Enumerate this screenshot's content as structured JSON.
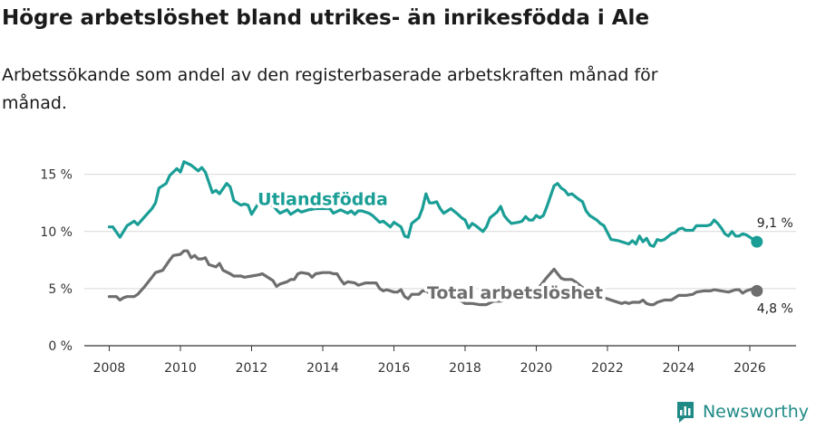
{
  "title": "Högre arbetslöshet bland utrikes- än inrikesfödda i Ale",
  "subtitle": "Arbetssökande som andel av den registerbaserade arbetskraften månad för månad.",
  "brand": {
    "name": "Newsworthy",
    "icon": "newsworthy-logo-icon",
    "color": "#1f8a86"
  },
  "chart_data": {
    "type": "line",
    "title": "",
    "xlabel": "",
    "ylabel": "",
    "xlim": [
      2007.3,
      2027.3
    ],
    "ylim": [
      0,
      16
    ],
    "yticks": [
      0,
      5,
      10,
      15
    ],
    "ytick_labels": [
      "0 %",
      "5 %",
      "10 %",
      "15 %"
    ],
    "xticks": [
      2008,
      2010,
      2012,
      2014,
      2016,
      2018,
      2020,
      2022,
      2024,
      2026
    ],
    "xtick_labels": [
      "2008",
      "2010",
      "2012",
      "2014",
      "2016",
      "2018",
      "2020",
      "2022",
      "2024",
      "2026"
    ],
    "grid": true,
    "series": [
      {
        "name": "Utlandsfödda",
        "color": "#1a9e96",
        "end_label": "9,1 %",
        "points": [
          [
            2008.0,
            10.4
          ],
          [
            2008.1,
            10.4
          ],
          [
            2008.3,
            9.5
          ],
          [
            2008.4,
            10.0
          ],
          [
            2008.5,
            10.5
          ],
          [
            2008.7,
            10.9
          ],
          [
            2008.8,
            10.6
          ],
          [
            2009.0,
            11.3
          ],
          [
            2009.2,
            12.0
          ],
          [
            2009.3,
            12.5
          ],
          [
            2009.4,
            13.8
          ],
          [
            2009.6,
            14.2
          ],
          [
            2009.7,
            14.9
          ],
          [
            2009.8,
            15.2
          ],
          [
            2009.9,
            15.5
          ],
          [
            2010.0,
            15.2
          ],
          [
            2010.1,
            16.1
          ],
          [
            2010.3,
            15.8
          ],
          [
            2010.5,
            15.3
          ],
          [
            2010.6,
            15.6
          ],
          [
            2010.7,
            15.2
          ],
          [
            2010.8,
            14.3
          ],
          [
            2010.9,
            13.4
          ],
          [
            2011.0,
            13.6
          ],
          [
            2011.1,
            13.3
          ],
          [
            2011.3,
            14.2
          ],
          [
            2011.4,
            13.9
          ],
          [
            2011.5,
            12.7
          ],
          [
            2011.7,
            12.3
          ],
          [
            2011.8,
            12.4
          ],
          [
            2011.9,
            12.3
          ],
          [
            2012.0,
            11.5
          ],
          [
            2012.2,
            12.5
          ],
          [
            2012.3,
            12.8
          ],
          [
            2012.4,
            12.6
          ],
          [
            2012.5,
            12.3
          ],
          [
            2012.6,
            12.3
          ],
          [
            2012.7,
            11.9
          ],
          [
            2012.8,
            11.6
          ],
          [
            2013.0,
            11.9
          ],
          [
            2013.1,
            11.5
          ],
          [
            2013.2,
            11.7
          ],
          [
            2013.3,
            11.9
          ],
          [
            2013.4,
            11.7
          ],
          [
            2013.6,
            11.9
          ],
          [
            2013.8,
            12.0
          ],
          [
            2014.0,
            12.0
          ],
          [
            2014.2,
            12.0
          ],
          [
            2014.3,
            11.6
          ],
          [
            2014.5,
            11.9
          ],
          [
            2014.7,
            11.6
          ],
          [
            2014.8,
            11.8
          ],
          [
            2014.9,
            11.5
          ],
          [
            2015.0,
            11.8
          ],
          [
            2015.1,
            11.8
          ],
          [
            2015.3,
            11.6
          ],
          [
            2015.4,
            11.4
          ],
          [
            2015.6,
            10.8
          ],
          [
            2015.7,
            10.9
          ],
          [
            2015.9,
            10.4
          ],
          [
            2016.0,
            10.8
          ],
          [
            2016.2,
            10.4
          ],
          [
            2016.3,
            9.6
          ],
          [
            2016.4,
            9.5
          ],
          [
            2016.5,
            10.7
          ],
          [
            2016.7,
            11.2
          ],
          [
            2016.8,
            12.0
          ],
          [
            2016.9,
            13.3
          ],
          [
            2017.0,
            12.5
          ],
          [
            2017.1,
            12.5
          ],
          [
            2017.2,
            12.6
          ],
          [
            2017.3,
            12.0
          ],
          [
            2017.4,
            11.6
          ],
          [
            2017.6,
            12.0
          ],
          [
            2017.8,
            11.5
          ],
          [
            2017.9,
            11.2
          ],
          [
            2018.0,
            11.0
          ],
          [
            2018.1,
            10.3
          ],
          [
            2018.2,
            10.7
          ],
          [
            2018.3,
            10.5
          ],
          [
            2018.5,
            10.0
          ],
          [
            2018.6,
            10.4
          ],
          [
            2018.7,
            11.2
          ],
          [
            2018.9,
            11.7
          ],
          [
            2019.0,
            12.2
          ],
          [
            2019.1,
            11.4
          ],
          [
            2019.2,
            11.0
          ],
          [
            2019.3,
            10.7
          ],
          [
            2019.5,
            10.8
          ],
          [
            2019.6,
            10.9
          ],
          [
            2019.7,
            11.3
          ],
          [
            2019.8,
            11.0
          ],
          [
            2019.9,
            11.0
          ],
          [
            2020.0,
            11.4
          ],
          [
            2020.1,
            11.2
          ],
          [
            2020.2,
            11.4
          ],
          [
            2020.3,
            12.2
          ],
          [
            2020.4,
            13.1
          ],
          [
            2020.5,
            14.0
          ],
          [
            2020.6,
            14.2
          ],
          [
            2020.7,
            13.8
          ],
          [
            2020.8,
            13.6
          ],
          [
            2020.9,
            13.2
          ],
          [
            2021.0,
            13.3
          ],
          [
            2021.2,
            12.8
          ],
          [
            2021.3,
            12.6
          ],
          [
            2021.4,
            11.8
          ],
          [
            2021.5,
            11.4
          ],
          [
            2021.7,
            11.0
          ],
          [
            2021.8,
            10.7
          ],
          [
            2021.9,
            10.5
          ],
          [
            2022.0,
            9.9
          ],
          [
            2022.1,
            9.3
          ],
          [
            2022.3,
            9.2
          ],
          [
            2022.4,
            9.1
          ],
          [
            2022.5,
            9.0
          ],
          [
            2022.6,
            8.9
          ],
          [
            2022.7,
            9.2
          ],
          [
            2022.8,
            8.9
          ],
          [
            2022.9,
            9.6
          ],
          [
            2023.0,
            9.1
          ],
          [
            2023.1,
            9.4
          ],
          [
            2023.2,
            8.8
          ],
          [
            2023.3,
            8.7
          ],
          [
            2023.4,
            9.3
          ],
          [
            2023.5,
            9.2
          ],
          [
            2023.6,
            9.3
          ],
          [
            2023.8,
            9.8
          ],
          [
            2023.9,
            9.9
          ],
          [
            2024.0,
            10.2
          ],
          [
            2024.1,
            10.3
          ],
          [
            2024.2,
            10.1
          ],
          [
            2024.4,
            10.1
          ],
          [
            2024.5,
            10.5
          ],
          [
            2024.6,
            10.5
          ],
          [
            2024.8,
            10.5
          ],
          [
            2024.9,
            10.6
          ],
          [
            2025.0,
            11.0
          ],
          [
            2025.1,
            10.7
          ],
          [
            2025.2,
            10.3
          ],
          [
            2025.3,
            9.8
          ],
          [
            2025.4,
            9.6
          ],
          [
            2025.5,
            10.0
          ],
          [
            2025.6,
            9.6
          ],
          [
            2025.7,
            9.6
          ],
          [
            2025.8,
            9.8
          ],
          [
            2025.9,
            9.7
          ],
          [
            2026.0,
            9.5
          ],
          [
            2026.1,
            9.3
          ],
          [
            2026.2,
            9.1
          ]
        ]
      },
      {
        "name": "Total arbetslöshet",
        "color": "#6e6e6e",
        "end_label": "4,8 %",
        "points": [
          [
            2008.0,
            4.3
          ],
          [
            2008.1,
            4.3
          ],
          [
            2008.2,
            4.3
          ],
          [
            2008.3,
            4.0
          ],
          [
            2008.4,
            4.2
          ],
          [
            2008.5,
            4.3
          ],
          [
            2008.7,
            4.3
          ],
          [
            2008.8,
            4.5
          ],
          [
            2009.0,
            5.2
          ],
          [
            2009.2,
            6.0
          ],
          [
            2009.3,
            6.4
          ],
          [
            2009.5,
            6.6
          ],
          [
            2009.7,
            7.5
          ],
          [
            2009.8,
            7.9
          ],
          [
            2010.0,
            8.0
          ],
          [
            2010.1,
            8.3
          ],
          [
            2010.2,
            8.3
          ],
          [
            2010.3,
            7.7
          ],
          [
            2010.4,
            7.9
          ],
          [
            2010.5,
            7.6
          ],
          [
            2010.6,
            7.6
          ],
          [
            2010.7,
            7.7
          ],
          [
            2010.8,
            7.1
          ],
          [
            2011.0,
            6.9
          ],
          [
            2011.1,
            7.2
          ],
          [
            2011.2,
            6.6
          ],
          [
            2011.4,
            6.3
          ],
          [
            2011.5,
            6.1
          ],
          [
            2011.7,
            6.1
          ],
          [
            2011.8,
            6.0
          ],
          [
            2012.0,
            6.1
          ],
          [
            2012.2,
            6.2
          ],
          [
            2012.3,
            6.3
          ],
          [
            2012.4,
            6.1
          ],
          [
            2012.6,
            5.7
          ],
          [
            2012.7,
            5.2
          ],
          [
            2012.8,
            5.4
          ],
          [
            2013.0,
            5.6
          ],
          [
            2013.1,
            5.8
          ],
          [
            2013.2,
            5.8
          ],
          [
            2013.3,
            6.3
          ],
          [
            2013.4,
            6.4
          ],
          [
            2013.6,
            6.3
          ],
          [
            2013.7,
            6.0
          ],
          [
            2013.8,
            6.3
          ],
          [
            2014.0,
            6.4
          ],
          [
            2014.2,
            6.4
          ],
          [
            2014.3,
            6.3
          ],
          [
            2014.4,
            6.3
          ],
          [
            2014.5,
            5.8
          ],
          [
            2014.6,
            5.4
          ],
          [
            2014.7,
            5.6
          ],
          [
            2014.9,
            5.5
          ],
          [
            2015.0,
            5.3
          ],
          [
            2015.2,
            5.5
          ],
          [
            2015.4,
            5.5
          ],
          [
            2015.5,
            5.5
          ],
          [
            2015.6,
            5.0
          ],
          [
            2015.7,
            4.8
          ],
          [
            2015.8,
            4.9
          ],
          [
            2016.0,
            4.7
          ],
          [
            2016.1,
            4.7
          ],
          [
            2016.2,
            4.9
          ],
          [
            2016.3,
            4.3
          ],
          [
            2016.4,
            4.1
          ],
          [
            2016.5,
            4.5
          ],
          [
            2016.7,
            4.5
          ],
          [
            2016.8,
            4.8
          ],
          [
            2016.9,
            4.8
          ],
          [
            2017.0,
            4.6
          ],
          [
            2017.2,
            4.5
          ],
          [
            2017.4,
            4.3
          ],
          [
            2017.5,
            4.2
          ],
          [
            2017.6,
            4.1
          ],
          [
            2017.8,
            4.0
          ],
          [
            2017.9,
            3.9
          ],
          [
            2018.0,
            3.7
          ],
          [
            2018.2,
            3.7
          ],
          [
            2018.4,
            3.6
          ],
          [
            2018.6,
            3.6
          ],
          [
            2018.8,
            3.9
          ],
          [
            2019.0,
            3.9
          ],
          [
            2019.2,
            4.1
          ],
          [
            2019.4,
            4.1
          ],
          [
            2019.6,
            4.3
          ],
          [
            2019.8,
            4.2
          ],
          [
            2020.0,
            4.6
          ],
          [
            2020.1,
            5.2
          ],
          [
            2020.3,
            6.0
          ],
          [
            2020.5,
            6.7
          ],
          [
            2020.6,
            6.3
          ],
          [
            2020.7,
            5.9
          ],
          [
            2020.8,
            5.8
          ],
          [
            2021.0,
            5.8
          ],
          [
            2021.1,
            5.6
          ],
          [
            2021.3,
            5.1
          ],
          [
            2021.4,
            4.9
          ],
          [
            2021.5,
            4.7
          ],
          [
            2021.7,
            4.3
          ],
          [
            2021.8,
            4.3
          ],
          [
            2022.0,
            4.1
          ],
          [
            2022.2,
            3.9
          ],
          [
            2022.4,
            3.7
          ],
          [
            2022.5,
            3.8
          ],
          [
            2022.6,
            3.7
          ],
          [
            2022.7,
            3.8
          ],
          [
            2022.9,
            3.8
          ],
          [
            2023.0,
            4.0
          ],
          [
            2023.1,
            3.7
          ],
          [
            2023.2,
            3.6
          ],
          [
            2023.3,
            3.6
          ],
          [
            2023.4,
            3.8
          ],
          [
            2023.6,
            4.0
          ],
          [
            2023.8,
            4.0
          ],
          [
            2024.0,
            4.4
          ],
          [
            2024.2,
            4.4
          ],
          [
            2024.4,
            4.5
          ],
          [
            2024.5,
            4.7
          ],
          [
            2024.7,
            4.8
          ],
          [
            2024.9,
            4.8
          ],
          [
            2025.0,
            4.9
          ],
          [
            2025.2,
            4.8
          ],
          [
            2025.4,
            4.7
          ],
          [
            2025.6,
            4.9
          ],
          [
            2025.7,
            4.9
          ],
          [
            2025.8,
            4.6
          ],
          [
            2025.9,
            4.8
          ],
          [
            2026.0,
            4.9
          ],
          [
            2026.1,
            5.0
          ],
          [
            2026.2,
            4.8
          ]
        ]
      }
    ],
    "annotations": [
      {
        "text": "Utlandsfödda",
        "series": "Utlandsfödda",
        "x": 2014.0,
        "y": 12.8
      },
      {
        "text": "Total arbetslöshet",
        "series": "Total arbetslöshet",
        "x": 2019.4,
        "y": 4.6
      }
    ]
  }
}
